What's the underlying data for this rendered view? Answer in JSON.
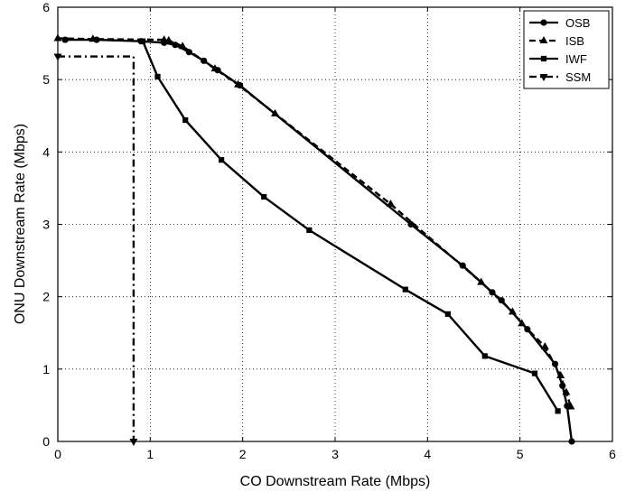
{
  "chart_data": {
    "type": "line",
    "title": "",
    "xlabel": "CO Downstream Rate (Mbps)",
    "ylabel": "ONU Downstream Rate (Mbps)",
    "xlim": [
      0,
      6
    ],
    "ylim": [
      0,
      6
    ],
    "xticks": [
      0,
      1,
      2,
      3,
      4,
      5,
      6
    ],
    "yticks": [
      0,
      1,
      2,
      3,
      4,
      5,
      6
    ],
    "grid": true,
    "legend_position": "top-right",
    "series": [
      {
        "name": "OSB",
        "marker": "circle",
        "dash": "solid",
        "x": [
          0.08,
          0.42,
          0.9,
          1.15,
          1.27,
          1.42,
          1.58,
          1.73,
          1.97,
          3.82,
          4.38,
          4.7,
          4.8,
          5.08,
          5.38,
          5.46,
          5.51,
          5.56
        ],
        "y": [
          5.55,
          5.55,
          5.53,
          5.51,
          5.48,
          5.38,
          5.26,
          5.13,
          4.92,
          3.0,
          2.43,
          2.06,
          1.95,
          1.55,
          1.07,
          0.77,
          0.49,
          0.0
        ]
      },
      {
        "name": "ISB",
        "marker": "triangle-up",
        "dash": "dashed",
        "x": [
          0.0,
          0.38,
          1.15,
          1.2,
          1.35,
          1.7,
          1.95,
          2.35,
          3.6,
          4.58,
          4.92,
          5.02,
          5.27,
          5.44,
          5.5,
          5.55
        ],
        "y": [
          5.57,
          5.56,
          5.55,
          5.54,
          5.46,
          5.15,
          4.93,
          4.53,
          3.28,
          2.2,
          1.79,
          1.63,
          1.31,
          0.91,
          0.68,
          0.48
        ]
      },
      {
        "name": "IWF",
        "marker": "square",
        "dash": "solid",
        "x": [
          0.92,
          1.08,
          1.38,
          1.77,
          2.23,
          2.72,
          3.76,
          4.22,
          4.62,
          5.16,
          5.41
        ],
        "y": [
          5.53,
          5.04,
          4.44,
          3.89,
          3.38,
          2.92,
          2.1,
          1.76,
          1.18,
          0.94,
          0.42
        ]
      },
      {
        "name": "SSM",
        "marker": "triangle-down",
        "dash": "dashdot",
        "x": [
          0.0,
          0.82,
          0.82
        ],
        "y": [
          5.32,
          5.32,
          0.0
        ]
      }
    ]
  }
}
